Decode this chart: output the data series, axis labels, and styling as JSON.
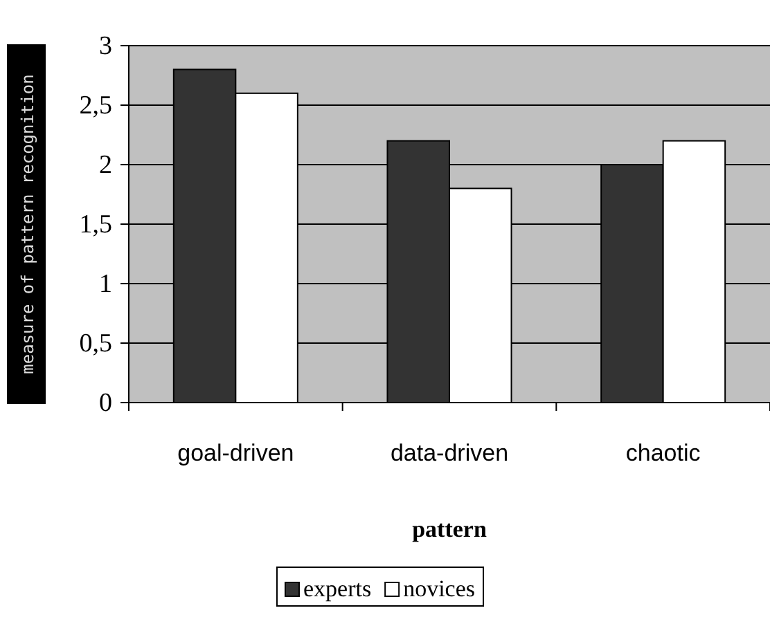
{
  "chart_data": {
    "type": "bar",
    "xlabel": "pattern",
    "ylabel": "measure of pattern recognition",
    "categories": [
      "goal-driven",
      "data-driven",
      "chaotic"
    ],
    "series": [
      {
        "name": "experts",
        "color": "#333333",
        "values": [
          2.8,
          2.2,
          2.0
        ]
      },
      {
        "name": "novices",
        "color": "#ffffff",
        "values": [
          2.6,
          1.8,
          2.2
        ]
      }
    ],
    "ylim": [
      0,
      3
    ],
    "yticks": [
      0,
      {
        "value": 0.5,
        "label": "0,5"
      },
      1,
      {
        "value": 1.5,
        "label": "1,5"
      },
      2,
      {
        "value": 2.5,
        "label": "2,5"
      },
      3
    ],
    "grid": "y",
    "legend": "bottom"
  }
}
